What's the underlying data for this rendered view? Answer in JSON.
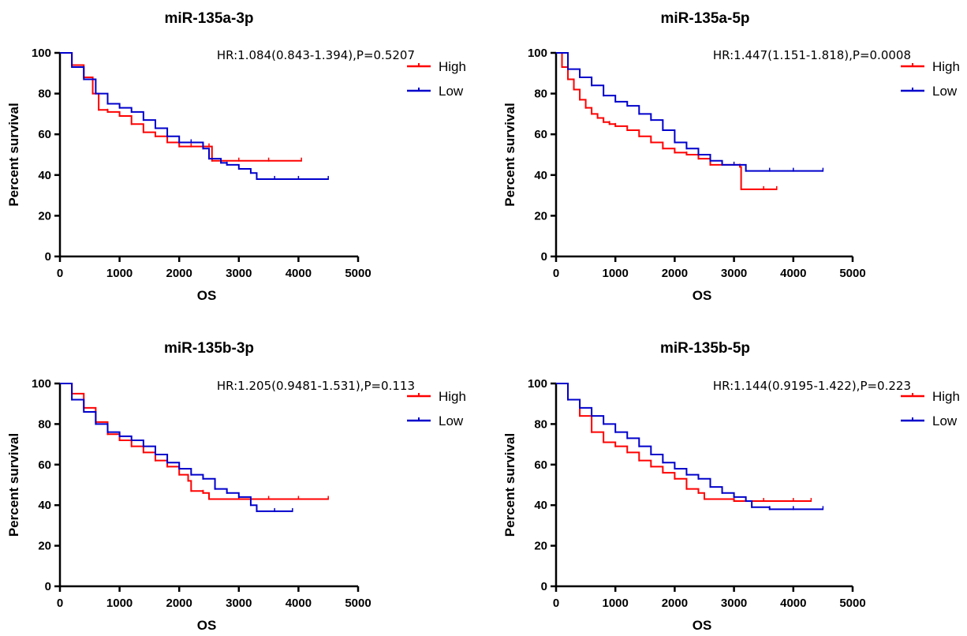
{
  "chart_data": [
    {
      "type": "line",
      "title": "miR-135a-3p",
      "annotation": "HR:1.084(0.843-1.394),P=0.5207",
      "xlabel": "OS",
      "ylabel": "Percent survival",
      "xlim": [
        0,
        5000
      ],
      "ylim": [
        0,
        100
      ],
      "xticks": [
        "0",
        "1000",
        "2000",
        "3000",
        "4000",
        "5000"
      ],
      "yticks": [
        "0",
        "20",
        "40",
        "60",
        "80",
        "100"
      ],
      "legend_position": "right",
      "series": [
        {
          "name": "High",
          "color": "#ff0000",
          "x": [
            0,
            200,
            400,
            550,
            650,
            800,
            1000,
            1200,
            1400,
            1600,
            1800,
            2000,
            2200,
            2400,
            2500,
            2550,
            3000,
            3500,
            4050
          ],
          "y": [
            100,
            94,
            88,
            80,
            72,
            71,
            69,
            65,
            61,
            59,
            56,
            54,
            54,
            54,
            54,
            47,
            47,
            47,
            47
          ]
        },
        {
          "name": "Low",
          "color": "#0000cc",
          "x": [
            0,
            200,
            400,
            600,
            800,
            1000,
            1200,
            1400,
            1600,
            1800,
            2000,
            2200,
            2400,
            2500,
            2700,
            2800,
            3000,
            3200,
            3300,
            3600,
            4000,
            4500
          ],
          "y": [
            100,
            93,
            87,
            80,
            75,
            73,
            71,
            67,
            63,
            59,
            56,
            56,
            53,
            48,
            46,
            45,
            43,
            41,
            38,
            38,
            38,
            38
          ]
        }
      ]
    },
    {
      "type": "line",
      "title": "miR-135a-5p",
      "annotation": "HR:1.447(1.151-1.818),P=0.0008",
      "xlabel": "OS",
      "ylabel": "Percent survival",
      "xlim": [
        0,
        5000
      ],
      "ylim": [
        0,
        100
      ],
      "xticks": [
        "0",
        "1000",
        "2000",
        "3000",
        "4000",
        "5000"
      ],
      "yticks": [
        "0",
        "20",
        "40",
        "60",
        "80",
        "100"
      ],
      "legend_position": "right",
      "series": [
        {
          "name": "High",
          "color": "#ff0000",
          "x": [
            0,
            100,
            200,
            300,
            400,
            500,
            600,
            700,
            800,
            900,
            1000,
            1200,
            1400,
            1600,
            1800,
            2000,
            2200,
            2400,
            2600,
            3100,
            3120,
            3500,
            3720
          ],
          "y": [
            100,
            93,
            87,
            82,
            77,
            73,
            70,
            68,
            66,
            65,
            64,
            62,
            59,
            56,
            53,
            51,
            50,
            48,
            45,
            44,
            33,
            33,
            33
          ]
        },
        {
          "name": "Low",
          "color": "#0000cc",
          "x": [
            0,
            200,
            400,
            600,
            800,
            1000,
            1200,
            1400,
            1600,
            1800,
            2000,
            2200,
            2400,
            2600,
            2800,
            3000,
            3200,
            3600,
            4000,
            4500
          ],
          "y": [
            100,
            92,
            88,
            84,
            79,
            76,
            74,
            70,
            67,
            62,
            56,
            53,
            50,
            47,
            45,
            45,
            42,
            42,
            42,
            42
          ]
        }
      ]
    },
    {
      "type": "line",
      "title": "miR-135b-3p",
      "annotation": "HR:1.205(0.9481-1.531),P=0.113",
      "xlabel": "OS",
      "ylabel": "Percent survival",
      "xlim": [
        0,
        5000
      ],
      "ylim": [
        0,
        100
      ],
      "xticks": [
        "0",
        "1000",
        "2000",
        "3000",
        "4000",
        "5000"
      ],
      "yticks": [
        "0",
        "20",
        "40",
        "60",
        "80",
        "100"
      ],
      "legend_position": "right",
      "series": [
        {
          "name": "High",
          "color": "#ff0000",
          "x": [
            0,
            200,
            400,
            600,
            800,
            1000,
            1200,
            1400,
            1600,
            1800,
            2000,
            2150,
            2200,
            2400,
            2500,
            3000,
            3500,
            4000,
            4500
          ],
          "y": [
            100,
            95,
            88,
            81,
            75,
            72,
            69,
            66,
            62,
            59,
            55,
            52,
            47,
            46,
            43,
            43,
            43,
            43,
            43
          ]
        },
        {
          "name": "Low",
          "color": "#0000cc",
          "x": [
            0,
            200,
            400,
            600,
            800,
            1000,
            1200,
            1400,
            1600,
            1800,
            2000,
            2200,
            2400,
            2600,
            2800,
            3000,
            3200,
            3300,
            3600,
            3900
          ],
          "y": [
            100,
            92,
            86,
            80,
            76,
            74,
            72,
            69,
            65,
            61,
            58,
            55,
            53,
            48,
            46,
            44,
            40,
            37,
            37,
            37
          ]
        }
      ]
    },
    {
      "type": "line",
      "title": "miR-135b-5p",
      "annotation": "HR:1.144(0.9195-1.422),P=0.223",
      "xlabel": "OS",
      "ylabel": "Percent survival",
      "xlim": [
        0,
        5000
      ],
      "ylim": [
        0,
        100
      ],
      "xticks": [
        "0",
        "1000",
        "2000",
        "3000",
        "4000",
        "5000"
      ],
      "yticks": [
        "0",
        "20",
        "40",
        "60",
        "80",
        "100"
      ],
      "legend_position": "right",
      "series": [
        {
          "name": "High",
          "color": "#ff0000",
          "x": [
            0,
            200,
            400,
            600,
            800,
            1000,
            1200,
            1400,
            1600,
            1800,
            2000,
            2200,
            2400,
            2500,
            3000,
            3500,
            4000,
            4300
          ],
          "y": [
            100,
            92,
            84,
            76,
            71,
            69,
            66,
            62,
            59,
            56,
            53,
            48,
            46,
            43,
            42,
            42,
            42,
            42
          ]
        },
        {
          "name": "Low",
          "color": "#0000cc",
          "x": [
            0,
            200,
            400,
            600,
            800,
            1000,
            1200,
            1400,
            1600,
            1800,
            2000,
            2200,
            2400,
            2600,
            2800,
            3000,
            3200,
            3300,
            3600,
            4000,
            4500
          ],
          "y": [
            100,
            92,
            88,
            84,
            80,
            76,
            73,
            69,
            65,
            61,
            58,
            55,
            53,
            49,
            46,
            44,
            42,
            39,
            38,
            38,
            38
          ]
        }
      ]
    }
  ]
}
